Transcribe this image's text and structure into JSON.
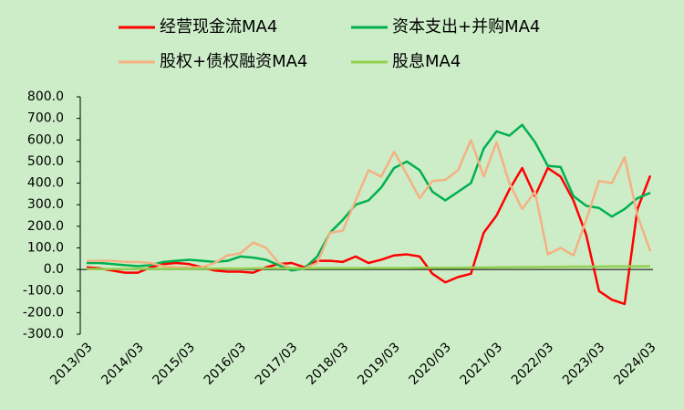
{
  "chart_data": {
    "type": "line",
    "categories": [
      "2013/03",
      null,
      null,
      null,
      "2014/03",
      null,
      null,
      null,
      "2015/03",
      null,
      null,
      null,
      "2016/03",
      null,
      null,
      null,
      "2017/03",
      null,
      null,
      null,
      "2018/03",
      null,
      null,
      null,
      "2019/03",
      null,
      null,
      null,
      "2020/03",
      null,
      null,
      null,
      "2021/03",
      null,
      null,
      null,
      "2022/03",
      null,
      null,
      null,
      "2023/03",
      null,
      null,
      null,
      "2024/03"
    ],
    "series": [
      {
        "name": "经营现金流MA4",
        "color": "#ff0000",
        "values": [
          10,
          5,
          -5,
          -15,
          -15,
          10,
          25,
          30,
          25,
          10,
          -5,
          -10,
          -10,
          -15,
          10,
          25,
          30,
          10,
          40,
          40,
          35,
          60,
          30,
          45,
          65,
          70,
          60,
          -20,
          -60,
          -35,
          -20,
          170,
          250,
          370,
          470,
          340,
          470,
          430,
          320,
          160,
          -100,
          -140,
          -160,
          280,
          435
        ]
      },
      {
        "name": "资本支出+并购MA4",
        "color": "#00b050",
        "values": [
          30,
          30,
          25,
          20,
          15,
          20,
          35,
          40,
          45,
          40,
          35,
          40,
          60,
          55,
          45,
          20,
          -5,
          5,
          60,
          170,
          230,
          300,
          320,
          380,
          470,
          500,
          460,
          360,
          320,
          360,
          400,
          560,
          640,
          620,
          670,
          590,
          480,
          475,
          340,
          295,
          285,
          245,
          280,
          330,
          355
        ]
      },
      {
        "name": "股权+债权融资MA4",
        "color": "#f4b183",
        "values": [
          40,
          40,
          40,
          35,
          35,
          30,
          15,
          10,
          10,
          10,
          30,
          65,
          75,
          125,
          100,
          30,
          5,
          5,
          30,
          170,
          180,
          320,
          460,
          430,
          545,
          440,
          330,
          410,
          415,
          460,
          600,
          430,
          590,
          400,
          280,
          360,
          70,
          100,
          65,
          230,
          410,
          400,
          520,
          250,
          85
        ]
      },
      {
        "name": "股息MA4",
        "color": "#92d050",
        "values": [
          2,
          2,
          2,
          2,
          3,
          3,
          3,
          3,
          3,
          4,
          4,
          4,
          4,
          5,
          5,
          5,
          5,
          5,
          6,
          6,
          6,
          6,
          7,
          7,
          7,
          7,
          8,
          8,
          8,
          8,
          9,
          9,
          10,
          10,
          11,
          11,
          12,
          12,
          13,
          13,
          13,
          14,
          14,
          14,
          15
        ]
      }
    ],
    "ylim": [
      -300,
      800
    ],
    "yticks": [
      {
        "value": -300,
        "label": "-300.0"
      },
      {
        "value": -200,
        "label": "-200.0"
      },
      {
        "value": -100,
        "label": "-100.0"
      },
      {
        "value": 0,
        "label": "0.0"
      },
      {
        "value": 100,
        "label": "100.0"
      },
      {
        "value": 200,
        "label": "200.0"
      },
      {
        "value": 300,
        "label": "300.0"
      },
      {
        "value": 400,
        "label": "400.0"
      },
      {
        "value": 500,
        "label": "500.0"
      },
      {
        "value": 600,
        "label": "600.0"
      },
      {
        "value": 700,
        "label": "700.0"
      },
      {
        "value": 800,
        "label": "800.0"
      }
    ],
    "legend": "top",
    "grid": false
  }
}
